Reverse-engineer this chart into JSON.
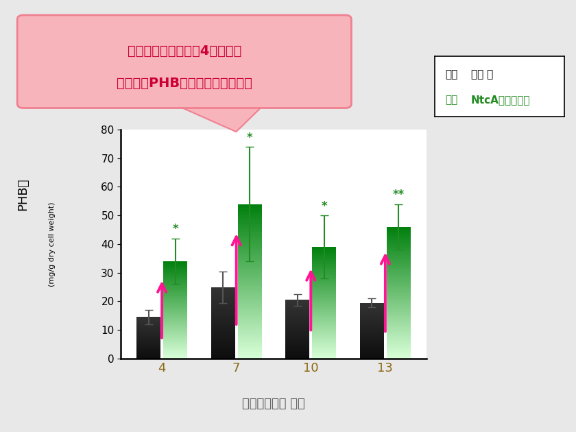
{
  "days": [
    4,
    7,
    10,
    13
  ],
  "black_values": [
    14.5,
    25.0,
    20.5,
    19.5
  ],
  "black_errors": [
    2.5,
    5.5,
    2.0,
    1.5
  ],
  "green_values": [
    34.0,
    54.0,
    39.0,
    46.0
  ],
  "green_errors": [
    8.0,
    20.0,
    11.0,
    8.0
  ],
  "green_stars": [
    "*",
    "*",
    "*",
    "**"
  ],
  "ylim": [
    0,
    80
  ],
  "yticks": [
    0,
    10,
    20,
    30,
    40,
    50,
    60,
    70,
    80
  ],
  "xlabel": "窒素欠乏後の 日数",
  "ylabel_line1": "PHB量",
  "ylabel_line2": "(mg/g dry cell weight)",
  "callout_line1": "遠伝子改変により、4つの条件",
  "callout_line2": "すべてでPHB量が２～３倍に増加",
  "legend_prefix_black": "黒　",
  "legend_black": "野生 株",
  "legend_prefix_green": "緑　",
  "legend_green": "NtcA過剰発現株",
  "bar_width": 0.32,
  "background_color": "#e8e8e8",
  "plot_bg_color": "#ffffff",
  "arrow_color": "#ff1493",
  "callout_bg": "#f8b4bb",
  "callout_border": "#f08090",
  "tick_label_color": "#8B6914",
  "green_text_color": "#228B22",
  "legend_text_color_black": "#000000",
  "legend_text_color_green": "#228B22",
  "xlabel_color": "#555555"
}
